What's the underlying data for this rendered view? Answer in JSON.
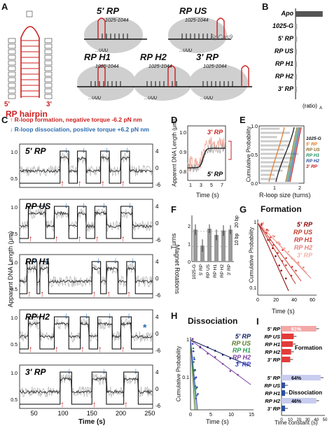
{
  "panels": {
    "A": {
      "letter": "A",
      "hairpin_label": "RP hairpin",
      "mark5": "5'",
      "mark3": "3'",
      "constructs": [
        "5' RP",
        "RP US",
        "RP H1",
        "RP H2",
        "3' RP"
      ],
      "seq_range": "1025-1044",
      "enzyme": "SpCas9",
      "u_track": "...UUU"
    },
    "B": {
      "letter": "B",
      "xlabel": "(ratio)",
      "xlabel_sub": "A"
    },
    "C": {
      "letter": "C",
      "legend_up": "R-loop formation, negative torque -6.2 pN nm",
      "legend_down": "R-loop dissociation, positive torque +6.2 pN nm",
      "ylabel_left": "Apparent DNA Length (μm)",
      "ylabel_right": "Magnet Rotations",
      "xlabel": "Time (s)",
      "traces": [
        "5' RP",
        "RP US",
        "RP H1",
        "RP H2",
        "3' RP"
      ],
      "left_ticks": [
        "0.5",
        "1.0"
      ],
      "right_ticks": [
        "4",
        "0",
        "-6"
      ],
      "x_ticks": [
        "50",
        "100",
        "150",
        "200",
        "250"
      ],
      "star": "*"
    },
    "D": {
      "letter": "D",
      "ylabel": "Apparent DNA Length (μm)",
      "xlabel": "Time (s)",
      "label_top": "3' RP",
      "label_bottom": "5' RP",
      "y_ticks": [
        "1.0",
        "0.9",
        "0.8"
      ],
      "x_ticks": [
        "1",
        "3",
        "5",
        "7"
      ]
    },
    "E": {
      "letter": "E",
      "ylabel": "Cumulative Probability",
      "xlabel": "R-loop size (turns)",
      "x_ticks": [
        "1",
        "2"
      ],
      "y_ticks": [
        "0.0",
        "0.5",
        "1.0"
      ],
      "legend": [
        "1025-G",
        "5' RP",
        "RP US",
        "RP H1",
        "RP H2",
        "3' RP"
      ]
    },
    "F": {
      "letter": "F",
      "ylabel": "Turns",
      "right1": "20 bp",
      "right2": "10 bp",
      "y_ticks": [
        "2",
        "1",
        "0"
      ]
    },
    "G": {
      "letter": "G",
      "title": "Formation",
      "ylabel": "Cumulative Probability",
      "xlabel": "Time (s)",
      "legend": [
        "5' RP",
        "RP US",
        "RP H1",
        "RP H2",
        "3' RP"
      ],
      "x_ticks": [
        "0",
        "20",
        "40",
        "60"
      ],
      "y_ticks": [
        "1",
        "0.1"
      ]
    },
    "H": {
      "letter": "H",
      "title": "Dissociation",
      "ylabel": "Cumulative Probability",
      "xlabel": "Time (s)",
      "legend": [
        "5' RP",
        "RP US",
        "RP H1",
        "RP H2",
        "3' RP"
      ],
      "x_ticks": [
        "0",
        "5",
        "10",
        "15"
      ],
      "y_ticks": [
        "1",
        "0.1"
      ]
    },
    "I": {
      "letter": "I",
      "formation": "Formation",
      "dissociation": "Dissociation",
      "xlabel": "Time constant (s)",
      "x_ticks": [
        "0",
        "10",
        "20",
        "30",
        "40",
        "50"
      ],
      "pct_formation": "61%",
      "pct_diss1": "64%",
      "pct_diss2": "46%"
    }
  },
  "colors": {
    "rp5": "#8b0000",
    "rpus": "#c0392b",
    "rph1": "#d43a3a",
    "rph2": "#e88080",
    "rp3": "#f2b6a8",
    "blue5": "#0d1a5e",
    "greenUS": "#5a7a2a",
    "greenH1": "#2e9a52",
    "purpleH2": "#7a3fa0",
    "blue3": "#3a3fcf",
    "arrow_up": "#cc1f1f",
    "arrow_down": "#2b6cb0",
    "trace_light": "#bbbbbb",
    "trace_dark": "#333333",
    "bar_red": "#e23b3b",
    "bar_blue": "#2c4fa0",
    "grey_cloud": "#cfcfcf"
  },
  "chart_data": [
    {
      "panel": "B",
      "type": "bar",
      "orientation": "horizontal",
      "categories": [
        "Apo",
        "1025-G",
        "5' RP",
        "RP US",
        "RP H1",
        "RP H2",
        "3' RP"
      ],
      "values": [
        0.88,
        0.05,
        0.05,
        0.04,
        0.04,
        0.04,
        0.03
      ]
    },
    {
      "panel": "F",
      "type": "bar",
      "categories": [
        "1025-G",
        "5' RP",
        "RP US",
        "RP H1",
        "RP H2",
        "3' RP"
      ],
      "values": [
        1.8,
        0.9,
        1.85,
        1.5,
        1.75,
        1.8
      ],
      "errors": [
        0.3,
        0.35,
        0.25,
        0.3,
        0.3,
        0.25
      ],
      "ylim": [
        0,
        2.6
      ]
    },
    {
      "panel": "I-formation",
      "type": "bar",
      "orientation": "horizontal",
      "categories": [
        "5' RP",
        "RP US",
        "RP H1",
        "RP H2",
        "3' RP"
      ],
      "values": [
        40,
        14,
        13,
        11,
        10
      ],
      "xlim": [
        0,
        50
      ]
    },
    {
      "panel": "I-dissociation",
      "type": "bar",
      "orientation": "horizontal",
      "categories": [
        "5' RP",
        "RP US",
        "RP H1",
        "RP H2",
        "3' RP"
      ],
      "values": [
        45,
        4,
        4,
        40,
        4
      ],
      "xlim": [
        0,
        50
      ]
    }
  ]
}
